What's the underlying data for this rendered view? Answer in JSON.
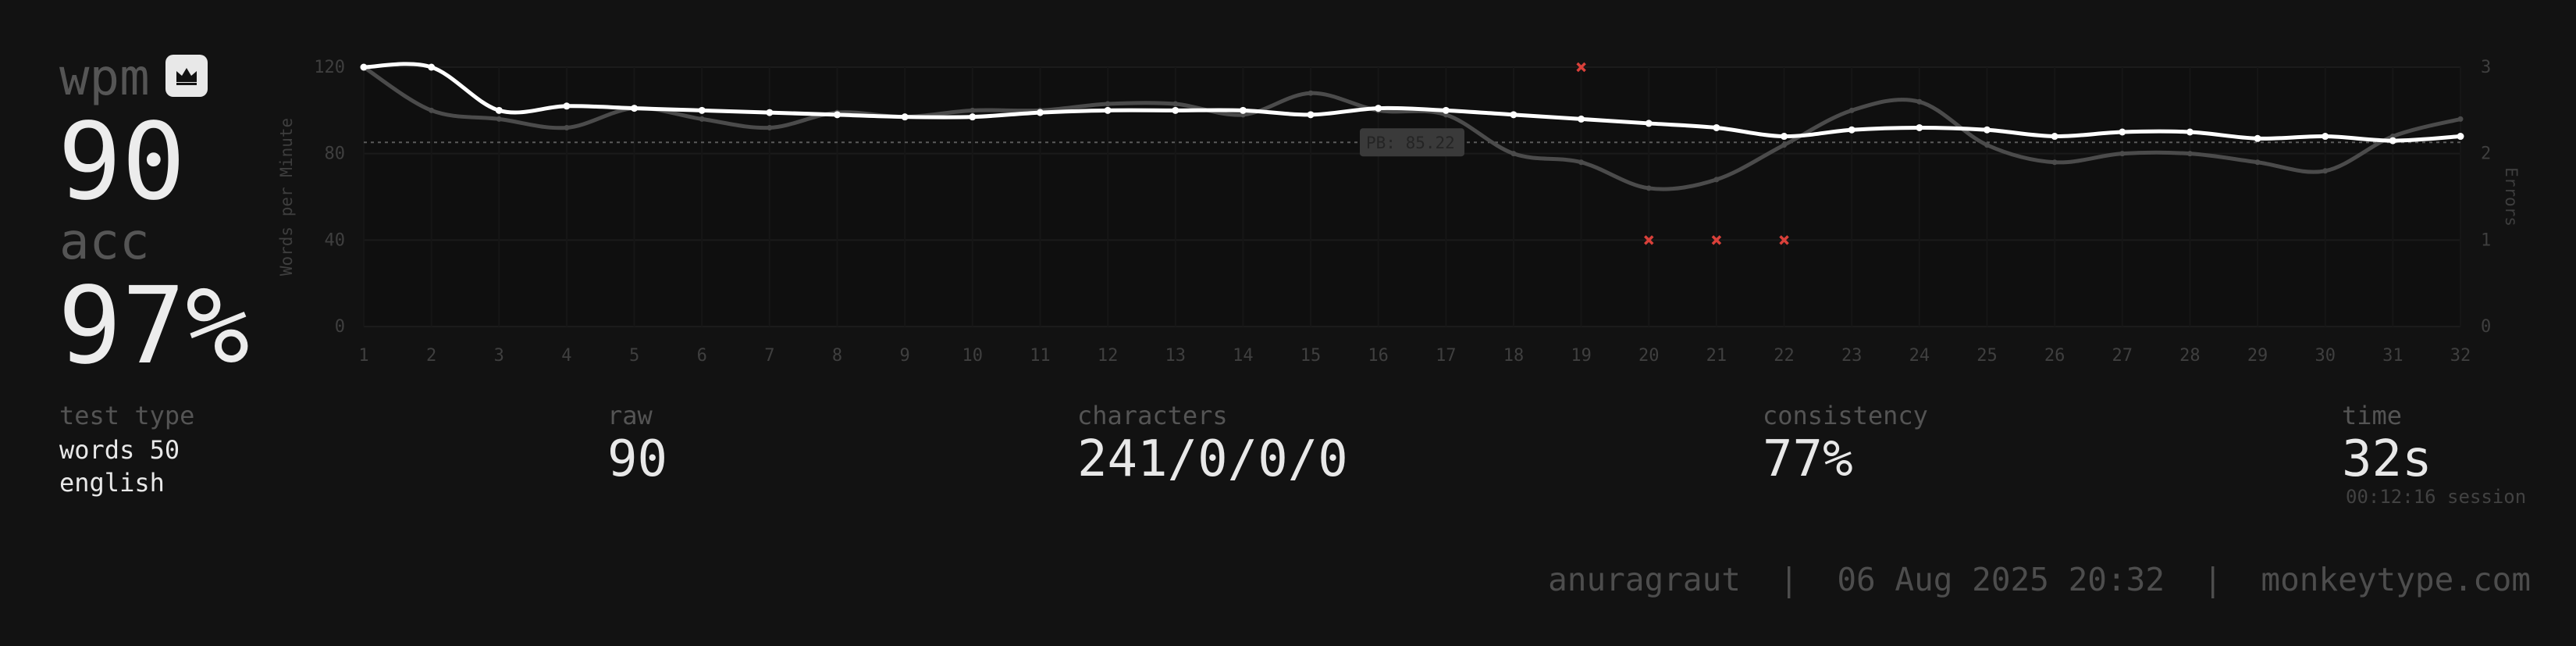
{
  "result": {
    "wpm_label": "wpm",
    "wpm_value": "90",
    "acc_label": "acc",
    "acc_value": "97%",
    "test_type_label": "test type",
    "test_type_line1": "words 50",
    "test_type_line2": "english",
    "raw_label": "raw",
    "raw_value": "90",
    "characters_label": "characters",
    "characters_value": "241/0/0/0",
    "consistency_label": "consistency",
    "consistency_value": "77%",
    "time_label": "time",
    "time_value": "32s",
    "session_text": "00:12:16 session",
    "footer_text": "anuragraut  |  06 Aug 2025 20:32  |  monkeytype.com"
  },
  "icons": {
    "crown": "crown-icon"
  },
  "colors": {
    "background": "#121212",
    "wpm_line": "#ffffff",
    "raw_line": "#4b4b4b",
    "error_marker": "#d9403a",
    "pb_line": "#5a5a5a",
    "text_dim": "#555555"
  },
  "chart_data": {
    "type": "line",
    "x": [
      1,
      2,
      3,
      4,
      5,
      6,
      7,
      8,
      9,
      10,
      11,
      12,
      13,
      14,
      15,
      16,
      17,
      18,
      19,
      20,
      21,
      22,
      23,
      24,
      25,
      26,
      27,
      28,
      29,
      30,
      31,
      32
    ],
    "xlim": [
      1,
      32
    ],
    "ylabel": "Words per Minute",
    "ylim": [
      0,
      120
    ],
    "yticks": [
      0,
      40,
      80,
      120
    ],
    "y2label": "Errors",
    "y2lim": [
      0,
      3
    ],
    "y2ticks": [
      0,
      1,
      2,
      3
    ],
    "series": [
      {
        "role": "wpm",
        "values": [
          120,
          120,
          100,
          102,
          101,
          100,
          99,
          98,
          97,
          97,
          99,
          100,
          100,
          100,
          98,
          101,
          100,
          98,
          96,
          94,
          92,
          88,
          91,
          92,
          91,
          88,
          90,
          90,
          87,
          88,
          86,
          88
        ]
      },
      {
        "role": "raw",
        "values": [
          120,
          100,
          96,
          92,
          101,
          96,
          92,
          99,
          97,
          100,
          100,
          103,
          103,
          98,
          108,
          100,
          98,
          80,
          76,
          64,
          68,
          84,
          100,
          104,
          84,
          76,
          80,
          80,
          76,
          72,
          88,
          96
        ]
      },
      {
        "role": "errors",
        "axis": "y2",
        "points": [
          [
            19,
            3
          ],
          [
            20,
            1
          ],
          [
            21,
            1
          ],
          [
            22,
            1
          ]
        ]
      }
    ],
    "pb_line": {
      "value": 85.22,
      "label": "PB: 85.22"
    },
    "grid": true,
    "legend": "none"
  }
}
